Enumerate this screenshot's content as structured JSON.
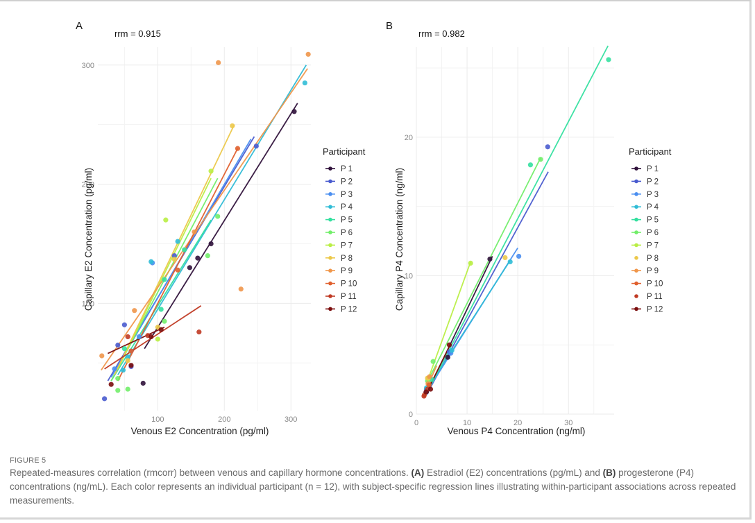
{
  "figure": {
    "label": "FIGURE 5",
    "caption_parts": [
      {
        "text": "Repeated-measures correlation (rmcorr) between venous and capillary hormone concentrations. ",
        "bold": false
      },
      {
        "text": "(A)",
        "bold": true
      },
      {
        "text": " Estradiol (E2) concentrations (pg/mL) and ",
        "bold": false
      },
      {
        "text": "(B)",
        "bold": true
      },
      {
        "text": " progesterone (P4) concentrations (ng/mL). Each color represents an individual participant (n = 12), with subject-specific regression lines illustrating within-participant associations across repeated measurements.",
        "bold": false
      }
    ]
  },
  "legend": {
    "title": "Participant",
    "entries": [
      {
        "label": "P 1",
        "color": "#30123b"
      },
      {
        "label": "P 2",
        "color": "#4a5ccf"
      },
      {
        "label": "P 3",
        "color": "#4a8ef0"
      },
      {
        "label": "P 4",
        "color": "#30bcd6"
      },
      {
        "label": "P 5",
        "color": "#35e0a0"
      },
      {
        "label": "P 6",
        "color": "#72ee6a"
      },
      {
        "label": "P 7",
        "color": "#b9ee44"
      },
      {
        "label": "P 8",
        "color": "#ecc84a"
      },
      {
        "label": "P 9",
        "color": "#f0964a"
      },
      {
        "label": "P 10",
        "color": "#e0602e"
      },
      {
        "label": "P 11",
        "color": "#c03a24"
      },
      {
        "label": "P 12",
        "color": "#7a0d0d"
      }
    ]
  },
  "chart_data": [
    {
      "panel": "A",
      "type": "scatter",
      "title": "rrm = 0.915",
      "xlabel": "Venous E2 Concentration (pg/ml)",
      "ylabel": "Capillary E2 Concentration (pg/ml)",
      "xlim": [
        10,
        330
      ],
      "ylim": [
        10,
        315
      ],
      "xticks": [
        100,
        200,
        300
      ],
      "yticks": [
        100,
        200,
        300
      ],
      "grid": true,
      "legend_position": "right",
      "series": [
        {
          "name": "P 1",
          "points": [
            [
              305,
              261
            ],
            [
              148,
              130
            ],
            [
              180,
              150
            ],
            [
              78,
              33
            ],
            [
              160,
              138
            ]
          ],
          "line": [
            [
              80,
              62
            ],
            [
              310,
              268
            ]
          ]
        },
        {
          "name": "P 2",
          "points": [
            [
              20,
              20
            ],
            [
              60,
              47
            ],
            [
              248,
              232
            ],
            [
              40,
              65
            ],
            [
              125,
              140
            ],
            [
              50,
              82
            ]
          ],
          "line": [
            [
              25,
              35
            ],
            [
              245,
              240
            ]
          ]
        },
        {
          "name": "P 3",
          "points": [
            [
              35,
              45
            ],
            [
              60,
              60
            ],
            [
              92,
              134
            ],
            [
              72,
              72
            ]
          ],
          "line": [
            [
              30,
              38
            ],
            [
              240,
              238
            ]
          ]
        },
        {
          "name": "P 4",
          "points": [
            [
              321,
              285
            ],
            [
              90,
              135
            ],
            [
              130,
              152
            ],
            [
              55,
              55
            ],
            [
              48,
              44
            ]
          ],
          "line": [
            [
              40,
              40
            ],
            [
              323,
              300
            ]
          ]
        },
        {
          "name": "P 5",
          "points": [
            [
              140,
              145
            ],
            [
              105,
              95
            ],
            [
              50,
              62
            ],
            [
              110,
              120
            ]
          ],
          "line": [
            [
              30,
              35
            ],
            [
              180,
              170
            ]
          ]
        },
        {
          "name": "P 6",
          "points": [
            [
              190,
              173
            ],
            [
              175,
              140
            ],
            [
              40,
              27
            ],
            [
              40,
              37
            ],
            [
              55,
              28
            ],
            [
              110,
              85
            ]
          ],
          "line": [
            [
              30,
              35
            ],
            [
              190,
              205
            ]
          ]
        },
        {
          "name": "P 7",
          "points": [
            [
              112,
              170
            ],
            [
              180,
              211
            ],
            [
              100,
              70
            ]
          ],
          "line": [
            [
              40,
              45
            ],
            [
              180,
              205
            ]
          ]
        },
        {
          "name": "P 8",
          "points": [
            [
              212,
              249
            ],
            [
              125,
              137
            ],
            [
              55,
              52
            ],
            [
              100,
              80
            ]
          ],
          "line": [
            [
              35,
              40
            ],
            [
              215,
              250
            ]
          ]
        },
        {
          "name": "P 9",
          "points": [
            [
              191,
              302
            ],
            [
              326,
              309
            ],
            [
              16,
              56
            ],
            [
              65,
              94
            ],
            [
              225,
              112
            ],
            [
              155,
              160
            ]
          ],
          "line": [
            [
              15,
              44
            ],
            [
              325,
              297
            ]
          ]
        },
        {
          "name": "P 10",
          "points": [
            [
              220,
              230
            ],
            [
              130,
              128
            ],
            [
              60,
              60
            ]
          ],
          "line": [
            [
              40,
              35
            ],
            [
              220,
              230
            ]
          ]
        },
        {
          "name": "P 11",
          "points": [
            [
              162,
              76
            ],
            [
              85,
              73
            ],
            [
              55,
              72
            ]
          ],
          "line": [
            [
              20,
              45
            ],
            [
              165,
              98
            ]
          ]
        },
        {
          "name": "P 12",
          "points": [
            [
              30,
              32
            ],
            [
              105,
              78
            ],
            [
              60,
              48
            ],
            [
              90,
              72
            ]
          ],
          "line": [
            [
              25,
              58
            ],
            [
              110,
              80
            ]
          ]
        }
      ]
    },
    {
      "panel": "B",
      "type": "scatter",
      "title": "rrm = 0.982",
      "xlabel": "Venous P4 Concentration (ng/ml)",
      "ylabel": "Capillary P4 Concentration (ng/ml)",
      "xlim": [
        0,
        39
      ],
      "ylim": [
        0,
        26.5
      ],
      "xticks": [
        0,
        10,
        20,
        30
      ],
      "yticks": [
        0,
        10,
        20
      ],
      "grid": true,
      "legend_position": "right",
      "series": [
        {
          "name": "P 1",
          "points": [
            [
              6.2,
              4.1
            ],
            [
              2.0,
              1.6
            ],
            [
              14.5,
              11.2
            ]
          ],
          "line": [
            [
              1.8,
              1.3
            ],
            [
              15,
              11.4
            ]
          ]
        },
        {
          "name": "P 2",
          "points": [
            [
              25.9,
              19.3
            ],
            [
              2.0,
              1.8
            ],
            [
              6.5,
              4.5
            ]
          ],
          "line": [
            [
              2,
              1.4
            ],
            [
              26,
              17.5
            ]
          ]
        },
        {
          "name": "P 3",
          "points": [
            [
              20.2,
              11.4
            ],
            [
              1.8,
              1.5
            ],
            [
              6.8,
              4.4
            ]
          ],
          "line": [
            [
              1.5,
              1.3
            ],
            [
              20,
              12
            ]
          ]
        },
        {
          "name": "P 4",
          "points": [
            [
              18.5,
              11.0
            ],
            [
              2.0,
              1.9
            ],
            [
              7.0,
              4.6
            ]
          ],
          "line": [
            [
              1.8,
              1.6
            ],
            [
              18.5,
              11.1
            ]
          ]
        },
        {
          "name": "P 5",
          "points": [
            [
              37.9,
              25.6
            ],
            [
              22.5,
              18.0
            ],
            [
              3.0,
              2.5
            ]
          ],
          "line": [
            [
              2,
              1.5
            ],
            [
              37.8,
              26.6
            ]
          ]
        },
        {
          "name": "P 6",
          "points": [
            [
              24.5,
              18.4
            ],
            [
              3.3,
              3.8
            ],
            [
              2.2,
              2.4
            ]
          ],
          "line": [
            [
              2,
              2.2
            ],
            [
              24.5,
              18.5
            ]
          ]
        },
        {
          "name": "P 7",
          "points": [
            [
              10.7,
              10.9
            ],
            [
              2.4,
              2.6
            ]
          ],
          "line": [
            [
              2.2,
              2.4
            ],
            [
              10.7,
              11
            ]
          ]
        },
        {
          "name": "P 8",
          "points": [
            [
              17.5,
              11.3
            ],
            [
              2.2,
              2.6
            ]
          ],
          "line": null
        },
        {
          "name": "P 9",
          "points": [
            [
              2.3,
              2.2
            ],
            [
              2.6,
              2.7
            ]
          ],
          "line": [
            [
              2,
              1.8
            ],
            [
              4,
              3.5
            ]
          ]
        },
        {
          "name": "P 10",
          "points": [
            [
              1.6,
              1.4
            ],
            [
              2.5,
              2.1
            ]
          ],
          "line": [
            [
              1.5,
              1.2
            ],
            [
              3,
              2.4
            ]
          ]
        },
        {
          "name": "P 11",
          "points": [
            [
              1.5,
              1.3
            ],
            [
              2.2,
              1.8
            ]
          ],
          "line": null
        },
        {
          "name": "P 12",
          "points": [
            [
              6.5,
              5.0
            ],
            [
              2.8,
              1.8
            ],
            [
              1.9,
              1.6
            ]
          ],
          "line": [
            [
              1.8,
              1.4
            ],
            [
              6.8,
              5.1
            ]
          ]
        }
      ]
    }
  ]
}
